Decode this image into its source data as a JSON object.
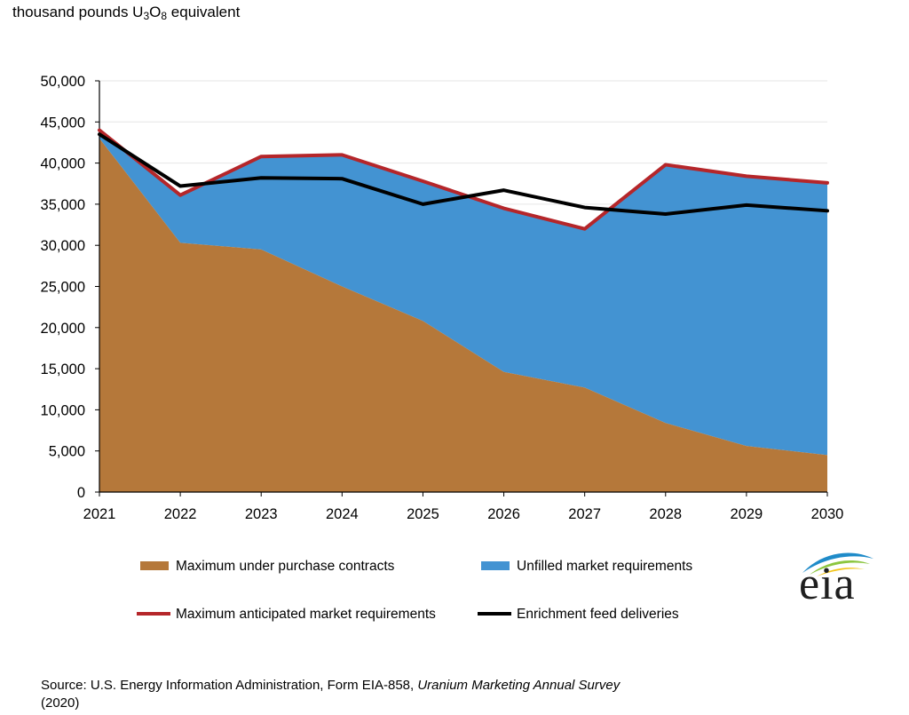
{
  "unit_label": {
    "main": "thousand pounds U",
    "sub1": "3",
    "mid": "O",
    "sub2": "8",
    "tail": " equivalent"
  },
  "source": {
    "prefix": "Source:  U.S. Energy Information Administration, Form EIA-858, ",
    "title": "Uranium Marketing Annual Survey",
    "suffix": "(2020)"
  },
  "logo": {
    "text": "eia"
  },
  "colors": {
    "contracts": "#b5783a",
    "unfilled": "#4393d2",
    "max_requirements": "#b5262a",
    "enrichment": "#000000",
    "grid": "#e6e6e6",
    "logo_swoosh_blue": "#1f8bc9",
    "logo_swoosh_green": "#8cc63f",
    "logo_swoosh_yellow": "#f2c418"
  },
  "chart_data": {
    "type": "area",
    "categories": [
      "2021",
      "2022",
      "2023",
      "2024",
      "2025",
      "2026",
      "2027",
      "2028",
      "2029",
      "2030"
    ],
    "ylim": [
      0,
      50000
    ],
    "yticks": [
      0,
      5000,
      10000,
      15000,
      20000,
      25000,
      30000,
      35000,
      40000,
      45000,
      50000
    ],
    "ytick_labels": [
      "0",
      "5,000",
      "10,000",
      "15,000",
      "20,000",
      "25,000",
      "30,000",
      "35,000",
      "40,000",
      "45,000",
      "50,000"
    ],
    "grid": true,
    "legend_position": "bottom",
    "series": [
      {
        "name": "Maximum under purchase contracts",
        "kind": "area",
        "values": [
          43000,
          30300,
          29500,
          25000,
          20800,
          14600,
          12700,
          8400,
          5600,
          4500
        ]
      },
      {
        "name": "Unfilled market requirements",
        "kind": "area",
        "values": [
          1000,
          5800,
          11300,
          16000,
          17000,
          19900,
          19300,
          31400,
          32800,
          33100
        ]
      },
      {
        "name": "Maximum anticipated market requirements",
        "kind": "line",
        "values": [
          44000,
          36100,
          40800,
          41000,
          37800,
          34500,
          32000,
          39800,
          38400,
          37600
        ]
      },
      {
        "name": "Enrichment feed deliveries",
        "kind": "line",
        "values": [
          43500,
          37200,
          38200,
          38100,
          35000,
          36700,
          34600,
          33800,
          34900,
          34200
        ]
      }
    ]
  }
}
